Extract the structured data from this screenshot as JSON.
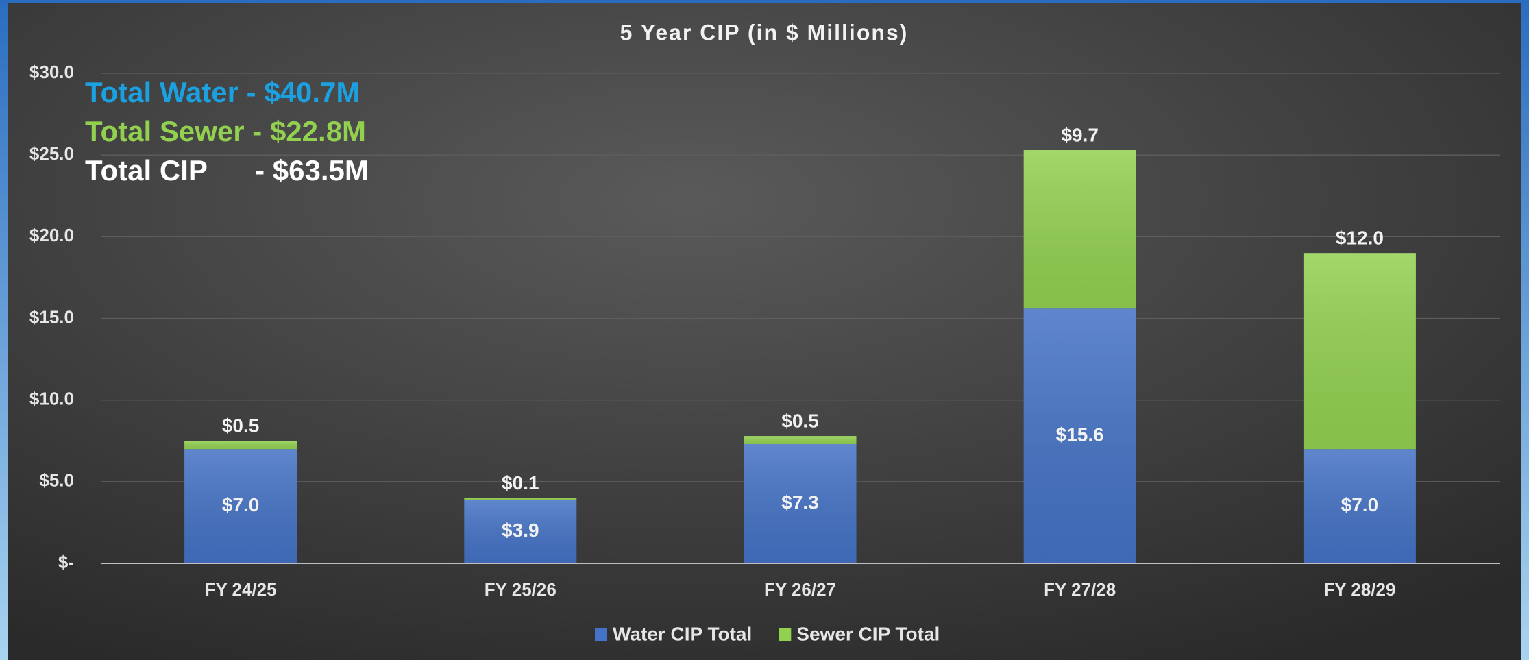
{
  "chart_data": {
    "type": "bar",
    "stacked": true,
    "title": "5 Year CIP (in $ Millions)",
    "categories": [
      "FY 24/25",
      "FY 25/26",
      "FY 26/27",
      "FY 27/28",
      "FY 28/29"
    ],
    "series": [
      {
        "name": "Water CIP Total",
        "color": "#4472c4",
        "values": [
          7.0,
          3.9,
          7.3,
          15.6,
          7.0
        ],
        "value_labels": [
          "$7.0",
          "$3.9",
          "$7.3",
          "$15.6",
          "$7.0"
        ]
      },
      {
        "name": "Sewer CIP Total",
        "color": "#92d050",
        "values": [
          0.5,
          0.1,
          0.5,
          9.7,
          12.0
        ],
        "value_labels": [
          "$0.5",
          "$0.1",
          "$0.5",
          "$9.7",
          "$12.0"
        ]
      }
    ],
    "ylim": [
      0,
      30
    ],
    "yticks": [
      {
        "value": 0,
        "label": "$-"
      },
      {
        "value": 5,
        "label": "$5.0"
      },
      {
        "value": 10,
        "label": "$10.0"
      },
      {
        "value": 15,
        "label": "$15.0"
      },
      {
        "value": 20,
        "label": "$20.0"
      },
      {
        "value": 25,
        "label": "$25.0"
      },
      {
        "value": 30,
        "label": "$30.0"
      }
    ],
    "grid": true,
    "legend": "bottom",
    "annotations": [
      {
        "text": "Total Water - $40.7M",
        "color": "#1ba1e2"
      },
      {
        "text": "Total Sewer - $22.8M",
        "color": "#92d050"
      },
      {
        "text": "Total CIP      - $63.5M",
        "color": "#ffffff"
      }
    ]
  }
}
